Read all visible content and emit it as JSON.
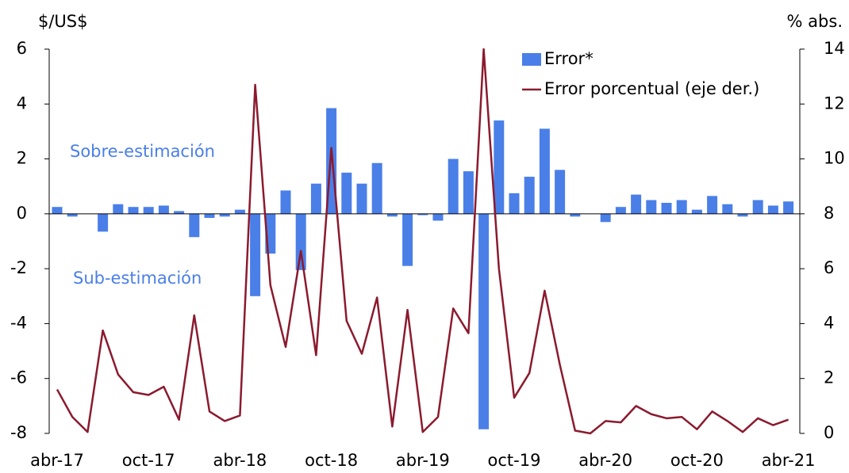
{
  "chart_data": {
    "type": "bar_line",
    "y_axis_label": "$/US$",
    "y2_axis_label": "% abs.",
    "annotations": [
      "Sobre-estimación",
      "Sub-estimación"
    ],
    "categories": [
      "abr-17",
      null,
      null,
      null,
      null,
      null,
      "oct-17",
      null,
      null,
      null,
      null,
      null,
      "abr-18",
      null,
      null,
      null,
      null,
      null,
      "oct-18",
      null,
      null,
      null,
      null,
      null,
      "abr-19",
      null,
      null,
      null,
      null,
      null,
      "oct-19",
      null,
      null,
      null,
      null,
      null,
      "abr-20",
      null,
      null,
      null,
      null,
      null,
      "oct-20",
      null,
      null,
      null,
      null,
      null,
      "abr-21"
    ],
    "series": [
      {
        "name": "Error*",
        "type": "bar",
        "color": "#4a7fe8",
        "axis": "y",
        "values": [
          0.25,
          -0.1,
          0,
          -0.65,
          0.35,
          0.25,
          0.25,
          0.3,
          0.1,
          -0.85,
          -0.15,
          -0.1,
          0.15,
          -3.0,
          -1.45,
          0.85,
          -2.05,
          1.1,
          3.85,
          1.5,
          1.1,
          1.85,
          -0.1,
          -1.9,
          -0.05,
          -0.25,
          2.0,
          1.55,
          -7.85,
          3.4,
          0.75,
          1.35,
          3.1,
          1.6,
          -0.1,
          0,
          -0.3,
          0.25,
          0.7,
          0.5,
          0.4,
          0.5,
          0.15,
          0.65,
          0.35,
          -0.1,
          0.5,
          0.3,
          0.45
        ]
      },
      {
        "name": "Error porcentual (eje der.)",
        "type": "line",
        "color": "#8b1a2e",
        "axis": "y2",
        "values": [
          1.6,
          0.6,
          0.05,
          3.75,
          2.15,
          1.5,
          1.4,
          1.7,
          0.5,
          4.3,
          0.8,
          0.45,
          0.65,
          12.7,
          5.4,
          3.15,
          6.65,
          2.85,
          10.4,
          4.1,
          2.9,
          4.95,
          0.25,
          4.5,
          0.05,
          0.6,
          4.55,
          3.65,
          14,
          6.0,
          1.3,
          2.2,
          5.2,
          2.5,
          0.1,
          0,
          0.45,
          0.4,
          1.0,
          0.7,
          0.55,
          0.6,
          0.15,
          0.8,
          0.45,
          0.05,
          0.55,
          0.3,
          0.5
        ]
      }
    ],
    "ylim": [
      -8,
      6
    ],
    "yticks": [
      -8,
      -6,
      -4,
      -2,
      0,
      2,
      4,
      6
    ],
    "y2lim": [
      0,
      14
    ],
    "y2ticks": [
      0,
      2,
      4,
      6,
      8,
      10,
      12,
      14
    ],
    "legend": "top-right",
    "grid": false
  }
}
